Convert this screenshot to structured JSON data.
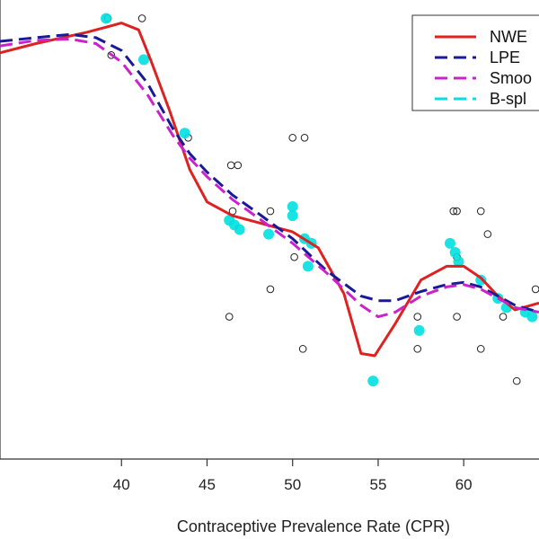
{
  "chart_data": {
    "type": "line",
    "title": "",
    "xlabel": "Contraceptive Prevalence Rate (CPR)",
    "ylabel": "",
    "xlim": [
      32.9,
      64.4
    ],
    "ylim": [
      0,
      1
    ],
    "x_ticks": [
      40,
      45,
      50,
      55,
      60
    ],
    "legend_position": "top-right",
    "grid": false,
    "colors": {
      "nwe": "#dd2222",
      "lpe": "#1a1a99",
      "smooth": "#cc22cc",
      "bspline": "#00e0e0",
      "observed": "#222222"
    },
    "legend": [
      {
        "key": "nwe",
        "label": "NWE",
        "style": "solid"
      },
      {
        "key": "lpe",
        "label": "LPE",
        "style": "dashed"
      },
      {
        "key": "smooth",
        "label": "Smoo",
        "style": "dashed"
      },
      {
        "key": "bspline",
        "label": "B-spl",
        "style": "dashed"
      }
    ],
    "observed_points": [
      [
        39.2,
        0.96
      ],
      [
        41.2,
        0.96
      ],
      [
        39.4,
        0.88
      ],
      [
        43.9,
        0.7
      ],
      [
        50.0,
        0.7
      ],
      [
        50.7,
        0.7
      ],
      [
        46.4,
        0.64
      ],
      [
        46.8,
        0.64
      ],
      [
        46.5,
        0.54
      ],
      [
        48.7,
        0.54
      ],
      [
        59.4,
        0.54
      ],
      [
        59.6,
        0.54
      ],
      [
        61.0,
        0.54
      ],
      [
        61.4,
        0.49
      ],
      [
        50.1,
        0.44
      ],
      [
        59.6,
        0.44
      ],
      [
        48.7,
        0.37
      ],
      [
        64.2,
        0.37
      ],
      [
        46.3,
        0.31
      ],
      [
        57.3,
        0.31
      ],
      [
        59.6,
        0.31
      ],
      [
        62.3,
        0.31
      ],
      [
        50.6,
        0.24
      ],
      [
        57.3,
        0.24
      ],
      [
        61.0,
        0.24
      ],
      [
        63.1,
        0.17
      ]
    ],
    "bspline_points": [
      [
        39.1,
        0.96
      ],
      [
        41.3,
        0.87
      ],
      [
        43.7,
        0.71
      ],
      [
        50.0,
        0.53
      ],
      [
        50.0,
        0.55
      ],
      [
        46.3,
        0.52
      ],
      [
        46.6,
        0.51
      ],
      [
        46.9,
        0.5
      ],
      [
        48.6,
        0.49
      ],
      [
        50.7,
        0.48
      ],
      [
        51.1,
        0.47
      ],
      [
        50.9,
        0.42
      ],
      [
        59.2,
        0.47
      ],
      [
        59.5,
        0.45
      ],
      [
        59.7,
        0.43
      ],
      [
        61.0,
        0.39
      ],
      [
        62.0,
        0.35
      ],
      [
        62.5,
        0.33
      ],
      [
        63.6,
        0.32
      ],
      [
        64.0,
        0.31
      ],
      [
        57.4,
        0.28
      ],
      [
        54.7,
        0.17
      ]
    ],
    "series": [
      {
        "key": "nwe",
        "x": [
          32.9,
          35.0,
          38.0,
          40.0,
          41.0,
          41.7,
          42.8,
          44.0,
          45.0,
          46.5,
          48.0,
          50.0,
          51.5,
          53.0,
          54.0,
          54.8,
          56.0,
          57.5,
          59.0,
          60.0,
          61.0,
          62.0,
          63.0,
          64.4
        ],
        "y": [
          0.885,
          0.905,
          0.93,
          0.95,
          0.935,
          0.87,
          0.76,
          0.63,
          0.56,
          0.53,
          0.515,
          0.495,
          0.46,
          0.36,
          0.23,
          0.225,
          0.295,
          0.39,
          0.42,
          0.42,
          0.395,
          0.355,
          0.325,
          0.34
        ]
      },
      {
        "key": "lpe",
        "x": [
          32.9,
          35.0,
          37.0,
          38.5,
          40.0,
          41.5,
          43.0,
          44.0,
          45.0,
          46.5,
          48.0,
          50.0,
          52.0,
          54.0,
          55.0,
          56.0,
          57.5,
          59.0,
          60.0,
          61.0,
          62.0,
          63.0,
          64.4
        ],
        "y": [
          0.91,
          0.918,
          0.925,
          0.918,
          0.89,
          0.82,
          0.72,
          0.665,
          0.625,
          0.575,
          0.535,
          0.48,
          0.41,
          0.355,
          0.345,
          0.345,
          0.365,
          0.38,
          0.385,
          0.375,
          0.355,
          0.335,
          0.32
        ]
      },
      {
        "key": "smooth",
        "x": [
          32.9,
          35.0,
          37.0,
          38.5,
          40.0,
          41.5,
          43.0,
          44.0,
          45.0,
          46.5,
          48.0,
          50.0,
          52.0,
          54.0,
          55.0,
          56.0,
          57.5,
          59.0,
          60.0,
          61.0,
          62.0,
          63.0,
          64.4
        ],
        "y": [
          0.9,
          0.912,
          0.915,
          0.905,
          0.865,
          0.795,
          0.705,
          0.655,
          0.615,
          0.565,
          0.525,
          0.47,
          0.405,
          0.335,
          0.31,
          0.32,
          0.355,
          0.375,
          0.38,
          0.37,
          0.35,
          0.33,
          0.32
        ]
      }
    ]
  }
}
